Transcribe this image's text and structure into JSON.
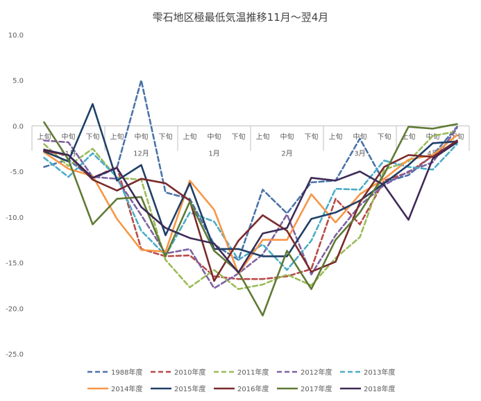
{
  "chart_data": {
    "type": "line",
    "title": "雫石地区極最低気温推移11月～翌4月",
    "ylim": [
      -25,
      10
    ],
    "yticks": [
      10,
      5,
      0,
      -5,
      -10,
      -15,
      -20,
      -25
    ],
    "ytick_labels": [
      "10.0",
      "5.0",
      "0.0",
      "-5.0",
      "-10.0",
      "-15.0",
      "-20.0",
      "-25.0"
    ],
    "x_sub": [
      "上旬",
      "中旬",
      "下旬",
      "上旬",
      "中旬",
      "下旬",
      "上旬",
      "中旬",
      "下旬",
      "上旬",
      "中旬",
      "下旬",
      "上旬",
      "中旬",
      "下旬",
      "上旬",
      "中旬",
      "下旬"
    ],
    "x_groups": [
      "11月",
      "12月",
      "1月",
      "2月",
      "3月",
      "4月"
    ],
    "grid": false,
    "legend_position": "bottom",
    "series": [
      {
        "name": "1988年度",
        "color": "#4a73a8",
        "dash": true,
        "values": [
          -4.5,
          -3.7,
          -5.8,
          -4.6,
          5.0,
          -7.3,
          -8.0,
          -13.0,
          -14.7,
          -7.0,
          -9.6,
          -6.2,
          -6.0,
          -1.4,
          -6.2,
          -5.4,
          -3.2,
          -0.1
        ]
      },
      {
        "name": "2010年度",
        "color": "#b84a48",
        "dash": true,
        "values": [
          -2.8,
          -3.2,
          -5.7,
          -4.5,
          -13.5,
          -14.3,
          -14.2,
          -16.5,
          -16.8,
          -16.8,
          -16.5,
          -15.7,
          -8.0,
          -10.8,
          -6.0,
          -5.1,
          -3.3,
          -1.7
        ]
      },
      {
        "name": "2011年度",
        "color": "#9bbb59",
        "dash": true,
        "values": [
          -2.0,
          -4.4,
          -2.5,
          -5.7,
          -5.9,
          -14.7,
          -17.7,
          -15.8,
          -17.9,
          -17.4,
          -16.3,
          -17.5,
          -14.5,
          -12.2,
          -4.8,
          -3.9,
          -1.1,
          -0.6
        ]
      },
      {
        "name": "2012年度",
        "color": "#7e62a1",
        "dash": true,
        "values": [
          -1.6,
          -1.8,
          -5.6,
          -5.8,
          -9.8,
          -14.0,
          -13.5,
          -17.8,
          -16.2,
          -14.1,
          -9.7,
          -16.3,
          -12.0,
          -8.7,
          -6.5,
          -5.0,
          -4.0,
          -0.2
        ]
      },
      {
        "name": "2013年度",
        "color": "#4bacc6",
        "dash": true,
        "values": [
          -3.5,
          -5.6,
          -3.0,
          -5.6,
          -11.5,
          -14.2,
          -9.5,
          -10.5,
          -14.7,
          -13.0,
          -15.8,
          -12.6,
          -6.9,
          -7.0,
          -3.8,
          -4.5,
          -4.8,
          -2.0
        ]
      },
      {
        "name": "2014年度",
        "color": "#f79646",
        "dash": false,
        "values": [
          -2.9,
          -4.7,
          -5.5,
          -10.2,
          -13.6,
          -13.8,
          -6.0,
          -9.2,
          -16.2,
          -12.5,
          -12.5,
          -7.5,
          -10.6,
          -7.5,
          -5.8,
          -3.7,
          -3.2,
          -1.0
        ]
      },
      {
        "name": "2015年度",
        "color": "#1f3f66",
        "dash": false,
        "values": [
          -2.8,
          -3.9,
          2.4,
          -6.0,
          -4.3,
          -12.0,
          -6.3,
          -13.5,
          -13.5,
          -14.3,
          -14.3,
          -10.2,
          -9.5,
          -8.2,
          -6.3,
          -4.3,
          -1.9,
          -1.7
        ]
      },
      {
        "name": "2016年度",
        "color": "#7a2a2a",
        "dash": false,
        "values": [
          -2.7,
          -3.2,
          -5.9,
          -7.1,
          -5.8,
          -6.3,
          -8.2,
          -17.0,
          -12.6,
          -9.8,
          -11.5,
          -16.0,
          -14.9,
          -8.4,
          -4.5,
          -3.2,
          -3.4,
          -1.6
        ]
      },
      {
        "name": "2017年度",
        "color": "#5f7a35",
        "dash": false,
        "values": [
          0.4,
          -3.7,
          -10.8,
          -8.0,
          -7.8,
          -14.3,
          -8.3,
          -13.7,
          -16.0,
          -20.8,
          -13.7,
          -17.9,
          -12.5,
          -9.5,
          -5.3,
          -0.1,
          -0.3,
          0.2
        ]
      },
      {
        "name": "2018年度",
        "color": "#3d2b57",
        "dash": false,
        "values": [
          -2.6,
          -3.2,
          -5.7,
          -4.6,
          -8.9,
          -11.2,
          -12.3,
          -12.9,
          -16.1,
          -11.8,
          -11.2,
          -5.7,
          -6.0,
          -5.0,
          -6.5,
          -10.3,
          -3.6,
          -1.8
        ]
      }
    ]
  }
}
